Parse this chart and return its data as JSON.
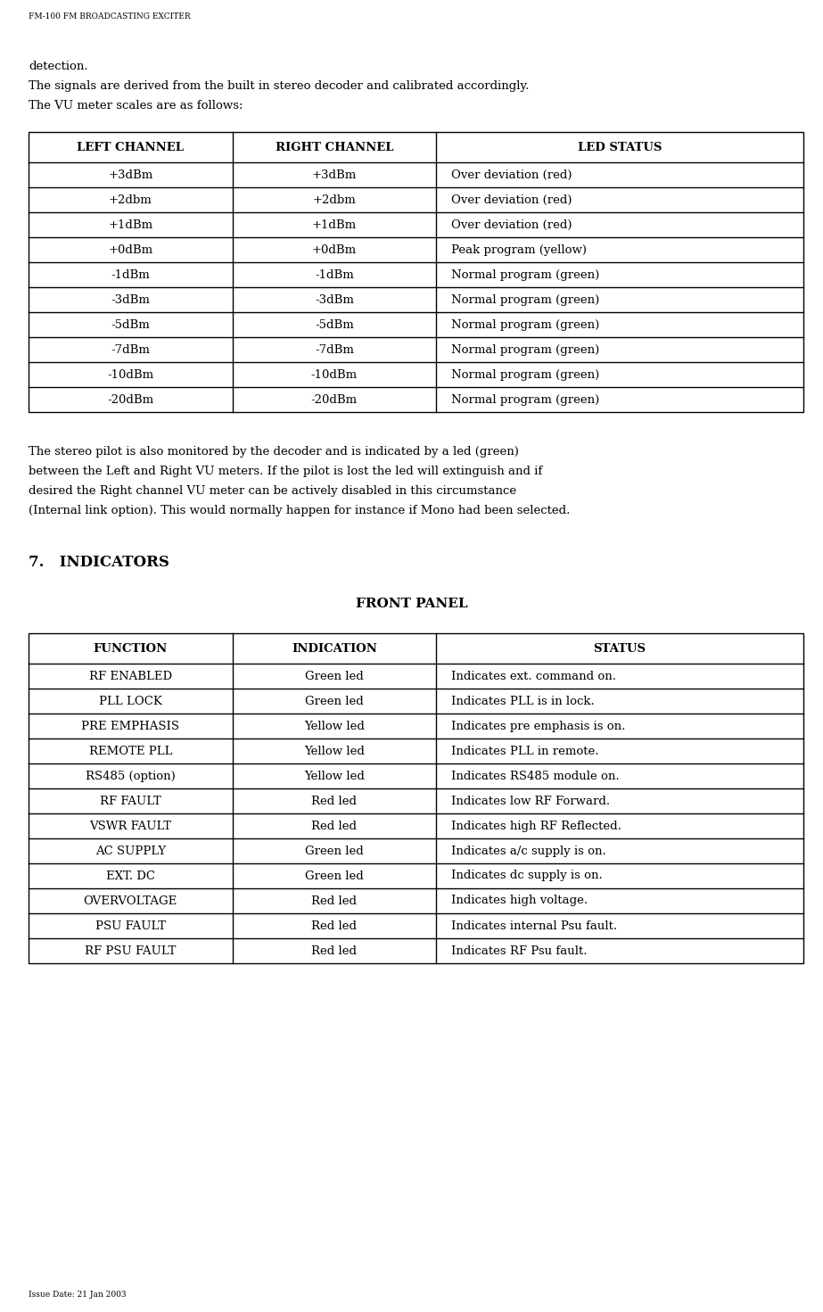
{
  "header": "FM-100 FM BROADCASTING EXCITER",
  "footer": "Issue Date: 21 Jan 2003",
  "para1": "detection.",
  "para2": "The signals are derived from the built in stereo decoder and calibrated accordingly.",
  "para3": "The VU meter scales are as follows:",
  "table1_headers": [
    "LEFT CHANNEL",
    "RIGHT CHANNEL",
    "LED STATUS"
  ],
  "table1_rows": [
    [
      "+3dBm",
      "+3dBm",
      "Over deviation (red)"
    ],
    [
      "+2dbm",
      "+2dbm",
      "Over deviation (red)"
    ],
    [
      "+1dBm",
      "+1dBm",
      "Over deviation (red)"
    ],
    [
      "+0dBm",
      "+0dBm",
      "Peak program (yellow)"
    ],
    [
      "-1dBm",
      "-1dBm",
      "Normal program (green)"
    ],
    [
      "-3dBm",
      "-3dBm",
      "Normal program (green)"
    ],
    [
      "-5dBm",
      "-5dBm",
      "Normal program (green)"
    ],
    [
      "-7dBm",
      "-7dBm",
      "Normal program (green)"
    ],
    [
      "-10dBm",
      "-10dBm",
      "Normal program (green)"
    ],
    [
      "-20dBm",
      "-20dBm",
      "Normal program (green)"
    ]
  ],
  "para4_lines": [
    "The stereo pilot is also monitored by the decoder and is indicated by a led (green)",
    "between the Left and Right VU meters. If the pilot is lost the led will extinguish and if",
    "desired the Right channel VU meter can be actively disabled in this circumstance",
    "(Internal link option). This would normally happen for instance if Mono had been selected."
  ],
  "section_header": "7.   INDICATORS",
  "front_panel_label": "FRONT PANEL",
  "table2_headers": [
    "FUNCTION",
    "INDICATION",
    "STATUS"
  ],
  "table2_rows": [
    [
      "RF ENABLED",
      "Green led",
      "Indicates ext. command on."
    ],
    [
      "PLL LOCK",
      "Green led",
      "Indicates PLL is in lock."
    ],
    [
      "PRE EMPHASIS",
      "Yellow led",
      "Indicates pre emphasis is on."
    ],
    [
      "REMOTE PLL",
      "Yellow led",
      "Indicates PLL in remote."
    ],
    [
      "RS485 (option)",
      "Yellow led",
      "Indicates RS485 module on."
    ],
    [
      "RF FAULT",
      "Red led",
      "Indicates low RF Forward."
    ],
    [
      "VSWR FAULT",
      "Red led",
      "Indicates high RF Reflected."
    ],
    [
      "AC SUPPLY",
      "Green led",
      "Indicates a/c supply is on."
    ],
    [
      "EXT. DC",
      "Green led",
      "Indicates dc supply is on."
    ],
    [
      "OVERVOLTAGE",
      "Red led",
      "Indicates high voltage."
    ],
    [
      "PSU FAULT",
      "Red led",
      "Indicates internal Psu fault."
    ],
    [
      "RF PSU FAULT",
      "Red led",
      "Indicates RF Psu fault."
    ]
  ],
  "bg_color": "#ffffff",
  "text_color": "#000000",
  "header_font_size": 6.5,
  "body_font_size": 9.5,
  "table_header_font_size": 9.5,
  "table_body_font_size": 9.5,
  "section_font_size": 12,
  "front_panel_font_size": 11
}
